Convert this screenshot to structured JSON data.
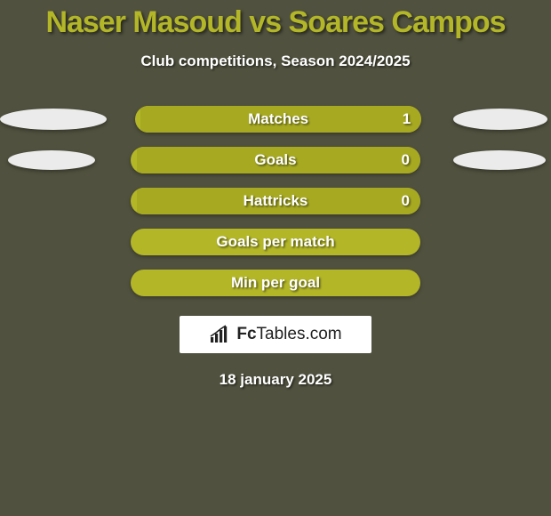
{
  "background_color": "#51513f",
  "title": {
    "text": "Naser Masoud vs Soares Campos",
    "color": "#b2b627",
    "fontsize": 34
  },
  "subtitle": {
    "text": "Club competitions, Season 2024/2025",
    "color": "#ffffff",
    "fontsize": 17
  },
  "stats": {
    "bar_base_color": "#b2b627",
    "bar_fill_color": "#a7aa21",
    "label_color": "#ffffff",
    "value_color": "#ffffff",
    "label_fontsize": 17,
    "value_fontsize": 17,
    "ellipse_left_color": "#ebebeb",
    "ellipse_right_color": "#ebebeb",
    "rows": [
      {
        "label": "Matches",
        "left": "",
        "right": "1",
        "left_ellipse": true,
        "right_ellipse": true,
        "ell_left_w": 120,
        "ell_left_h": 24,
        "ell_right_w": 106,
        "ell_right_h": 24,
        "fill_right_pct": 98
      },
      {
        "label": "Goals",
        "left": "",
        "right": "0",
        "left_ellipse": true,
        "right_ellipse": true,
        "ell_left_w": 98,
        "ell_left_h": 22,
        "ell_right_w": 104,
        "ell_right_h": 22,
        "fill_right_pct": 98
      },
      {
        "label": "Hattricks",
        "left": "",
        "right": "0",
        "left_ellipse": false,
        "right_ellipse": false,
        "fill_right_pct": 98
      },
      {
        "label": "Goals per match",
        "left": "",
        "right": "",
        "left_ellipse": false,
        "right_ellipse": false,
        "fill_right_pct": 0
      },
      {
        "label": "Min per goal",
        "left": "",
        "right": "",
        "left_ellipse": false,
        "right_ellipse": false,
        "fill_right_pct": 0
      }
    ]
  },
  "logo": {
    "brand_bold": "Fc",
    "brand_light": "Tables",
    "brand_suffix": ".com",
    "text_color": "#222222"
  },
  "date": {
    "text": "18 january 2025",
    "color": "#ffffff",
    "fontsize": 17
  }
}
